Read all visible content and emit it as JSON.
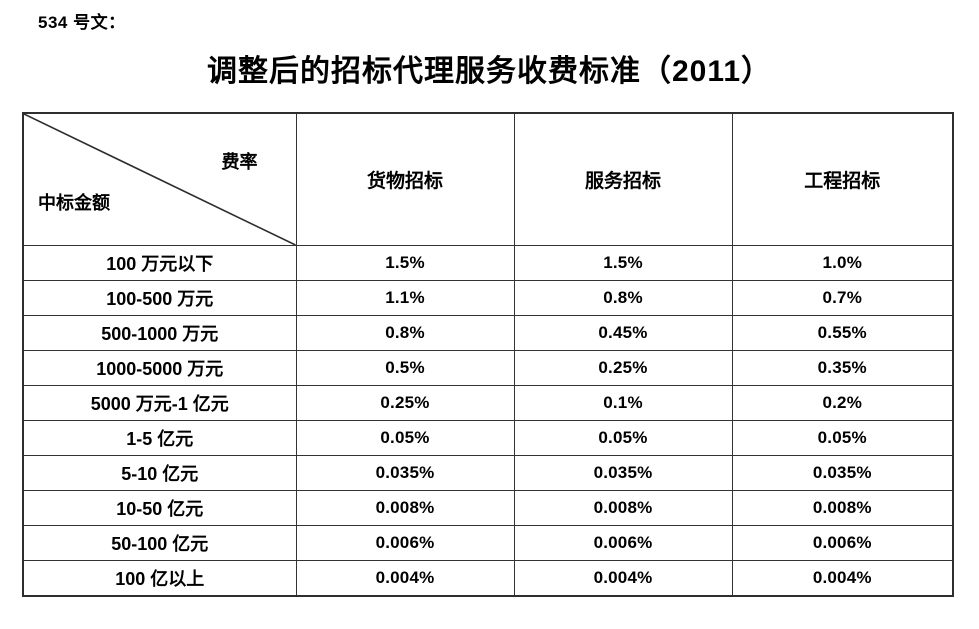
{
  "doc": {
    "ref_label": "534 号文：",
    "title": "调整后的招标代理服务收费标准（2011）"
  },
  "table": {
    "corner_top_right": "费率",
    "corner_bottom_left": "中标金额",
    "columns": [
      "货物招标",
      "服务招标",
      "工程招标"
    ],
    "rows": [
      {
        "label": "100 万元以下",
        "values": [
          "1.5%",
          "1.5%",
          "1.0%"
        ]
      },
      {
        "label": "100-500 万元",
        "values": [
          "1.1%",
          "0.8%",
          "0.7%"
        ]
      },
      {
        "label": "500-1000 万元",
        "values": [
          "0.8%",
          "0.45%",
          "0.55%"
        ]
      },
      {
        "label": "1000-5000 万元",
        "values": [
          "0.5%",
          "0.25%",
          "0.35%"
        ]
      },
      {
        "label": "5000 万元-1 亿元",
        "values": [
          "0.25%",
          "0.1%",
          "0.2%"
        ]
      },
      {
        "label": "1-5 亿元",
        "values": [
          "0.05%",
          "0.05%",
          "0.05%"
        ]
      },
      {
        "label": "5-10 亿元",
        "values": [
          "0.035%",
          "0.035%",
          "0.035%"
        ]
      },
      {
        "label": "10-50 亿元",
        "values": [
          "0.008%",
          "0.008%",
          "0.008%"
        ]
      },
      {
        "label": "50-100 亿元",
        "values": [
          "0.006%",
          "0.006%",
          "0.006%"
        ]
      },
      {
        "label": "100 亿以上",
        "values": [
          "0.004%",
          "0.004%",
          "0.004%"
        ]
      }
    ]
  },
  "colors": {
    "text": "#000000",
    "border": "#333333",
    "outer_border": "#2e2e2e",
    "background": "#ffffff"
  }
}
